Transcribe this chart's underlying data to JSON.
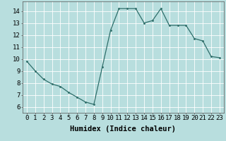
{
  "x": [
    0,
    1,
    2,
    3,
    4,
    5,
    6,
    7,
    8,
    9,
    10,
    11,
    12,
    13,
    14,
    15,
    16,
    17,
    18,
    19,
    20,
    21,
    22,
    23
  ],
  "y": [
    9.8,
    9.0,
    8.3,
    7.9,
    7.7,
    7.2,
    6.8,
    6.4,
    6.2,
    9.3,
    12.4,
    14.2,
    14.2,
    14.2,
    13.0,
    13.2,
    14.2,
    12.8,
    12.8,
    12.8,
    11.7,
    11.5,
    10.2,
    10.1
  ],
  "bg_color": "#b8dede",
  "line_color": "#2e6e6a",
  "marker_color": "#2e6e6a",
  "grid_color": "#ffffff",
  "xlabel": "Humidex (Indice chaleur)",
  "xlim": [
    -0.5,
    23.5
  ],
  "ylim": [
    5.5,
    14.8
  ],
  "yticks": [
    6,
    7,
    8,
    9,
    10,
    11,
    12,
    13,
    14
  ],
  "xticks": [
    0,
    1,
    2,
    3,
    4,
    5,
    6,
    7,
    8,
    9,
    10,
    11,
    12,
    13,
    14,
    15,
    16,
    17,
    18,
    19,
    20,
    21,
    22,
    23
  ],
  "tick_label_fontsize": 6.5,
  "xlabel_fontsize": 7.5
}
